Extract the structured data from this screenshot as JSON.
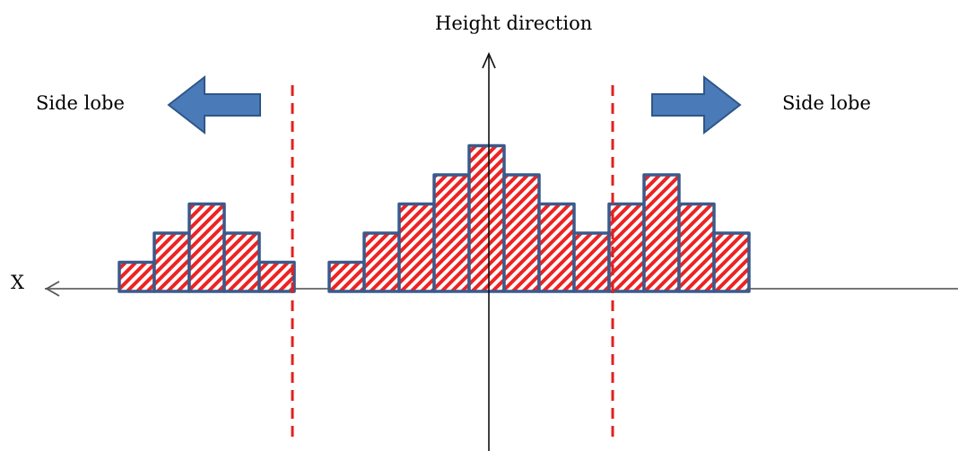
{
  "labels": {
    "axis_vertical": "Height direction",
    "axis_horizontal": "X",
    "side_lobe_left": "Side lobe",
    "side_lobe_right": "Side lobe"
  },
  "colors": {
    "bar_outline": "#3a5a8c",
    "bar_hatch": "#ee2222",
    "divider": "#e22020",
    "arrow_fill": "#4a7ab8",
    "arrow_outline": "#2e5788",
    "axis": "#777777",
    "axis_vertical": "#111111"
  },
  "chart_data": {
    "type": "bar",
    "left_lobe_heights": [
      1,
      2,
      3,
      2,
      1
    ],
    "main_and_right_heights": [
      1,
      2,
      3,
      4,
      5,
      4,
      3,
      2,
      3,
      4,
      3,
      2
    ]
  }
}
